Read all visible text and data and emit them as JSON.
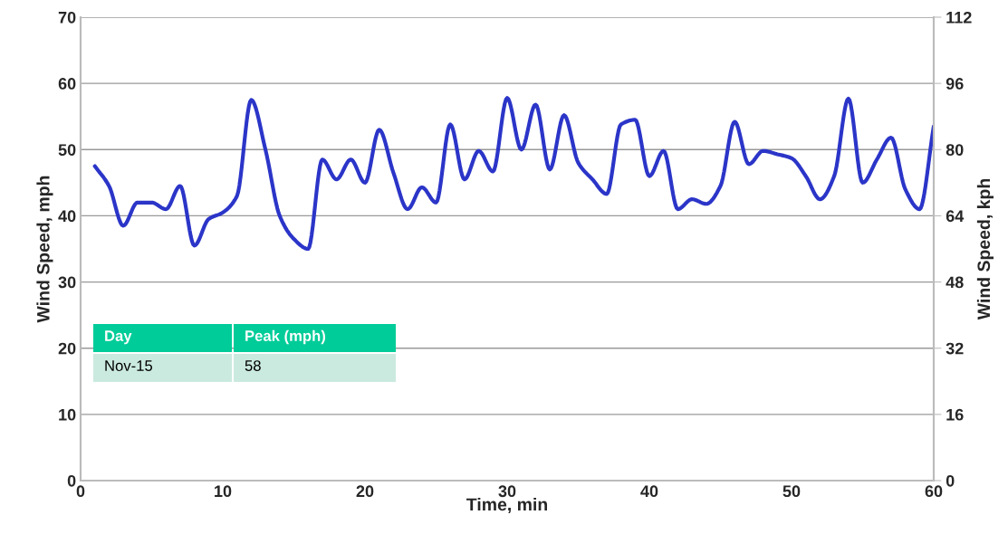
{
  "chart_data": {
    "type": "line",
    "xlabel": "Time, min",
    "ylabel": "Wind Speed, mph",
    "y2label": "Wind Speed, kph",
    "x": [
      1,
      2,
      3,
      4,
      5,
      6,
      7,
      8,
      9,
      10,
      11,
      12,
      13,
      14,
      15,
      16,
      17,
      18,
      19,
      20,
      21,
      22,
      23,
      24,
      25,
      26,
      27,
      28,
      29,
      30,
      31,
      32,
      33,
      34,
      35,
      36,
      37,
      38,
      39,
      40,
      41,
      42,
      43,
      44,
      45,
      46,
      47,
      48,
      49,
      50,
      51,
      52,
      53,
      54,
      55,
      56,
      57,
      58,
      59,
      60
    ],
    "series": [
      {
        "color": "#2b35c8",
        "values": [
          47.5,
          44.5,
          38.5,
          42,
          42,
          41,
          44.5,
          35.5,
          39.5,
          40.5,
          43,
          57.5,
          50,
          40,
          36.5,
          35,
          48.5,
          45.5,
          48.5,
          45,
          53,
          46.5,
          41,
          44.3,
          42,
          53.8,
          45.5,
          49.8,
          46.7,
          57.8,
          50,
          56.8,
          47,
          55.2,
          48,
          45.5,
          43.3,
          53.8,
          54.5,
          46,
          49.8,
          41,
          42.5,
          41.8,
          44.5,
          54.2,
          47.8,
          49.8,
          49.3,
          48.7,
          46,
          42.5,
          46,
          57.7,
          45,
          48.5,
          51.8,
          44,
          41,
          53.5
        ]
      }
    ],
    "xlim": [
      0,
      60
    ],
    "xticks": [
      0,
      10,
      20,
      30,
      40,
      50,
      60
    ],
    "ylim": [
      0,
      70
    ],
    "yticks": [
      0,
      10,
      20,
      30,
      40,
      50,
      60,
      70
    ],
    "y2lim": [
      0,
      112
    ],
    "y2ticks": [
      0,
      16,
      32,
      48,
      64,
      80,
      96,
      112
    ],
    "grid": "y",
    "legend": false,
    "marker": "none",
    "line_style": "solid",
    "annotations": [
      "Day",
      "Peak (mph)",
      "Nov-15",
      "58"
    ]
  }
}
